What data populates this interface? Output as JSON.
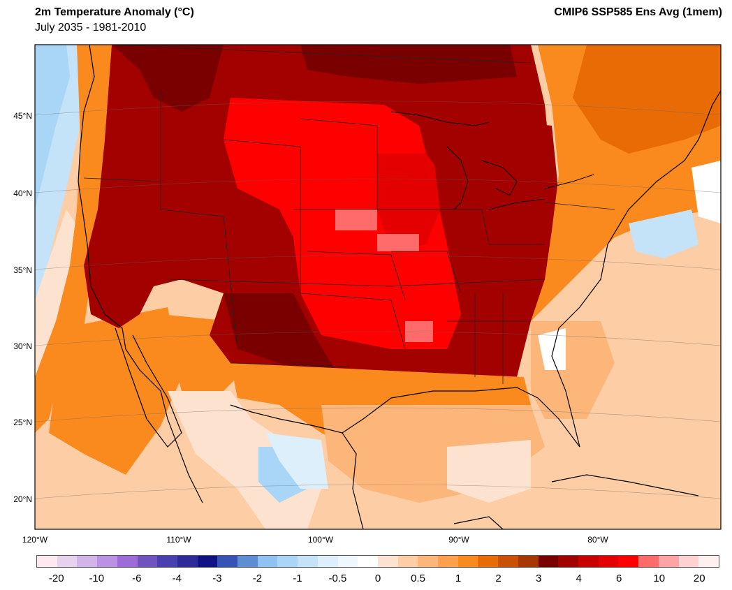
{
  "header": {
    "title": "2m Temperature Anomaly (°C)",
    "subtitle": "July 2035 - 1981-2010",
    "model": "CMIP6 SSP585 Ens Avg (1mem)"
  },
  "map": {
    "projection": "Lambert conformal",
    "region": "United States and Gulf of Mexico",
    "lat_labels": [
      "45°N",
      "40°N",
      "35°N",
      "30°N",
      "25°N",
      "20°N"
    ],
    "lon_labels": [
      "120°W",
      "110°W",
      "100°W",
      "90°W",
      "80°W"
    ]
  },
  "colorbar": {
    "colors": [
      "#fde9f0",
      "#e6d2ef",
      "#d2b3ea",
      "#bb91e3",
      "#9e6cd6",
      "#6f54c0",
      "#4a3fb0",
      "#2d2b9a",
      "#101385",
      "#3553b5",
      "#5d8ed3",
      "#8fc1f3",
      "#a9d5f6",
      "#c4e3f8",
      "#dceffa",
      "#eff7fc",
      "#ffffff",
      "#fde3cf",
      "#fdcda6",
      "#fdb679",
      "#fd9f4b",
      "#fb8a1e",
      "#e86b05",
      "#ca5104",
      "#a83703",
      "#7a0000",
      "#a30000",
      "#c80000",
      "#e40000",
      "#ff0000",
      "#ff6a6a",
      "#ffa4a4",
      "#ffd1d1",
      "#fff0f0"
    ],
    "labels": [
      "-20",
      "-10",
      "-6",
      "-4",
      "-3",
      "-2",
      "-1",
      "-0.5",
      "0",
      "0.5",
      "1",
      "2",
      "3",
      "4",
      "6",
      "10",
      "20"
    ]
  }
}
